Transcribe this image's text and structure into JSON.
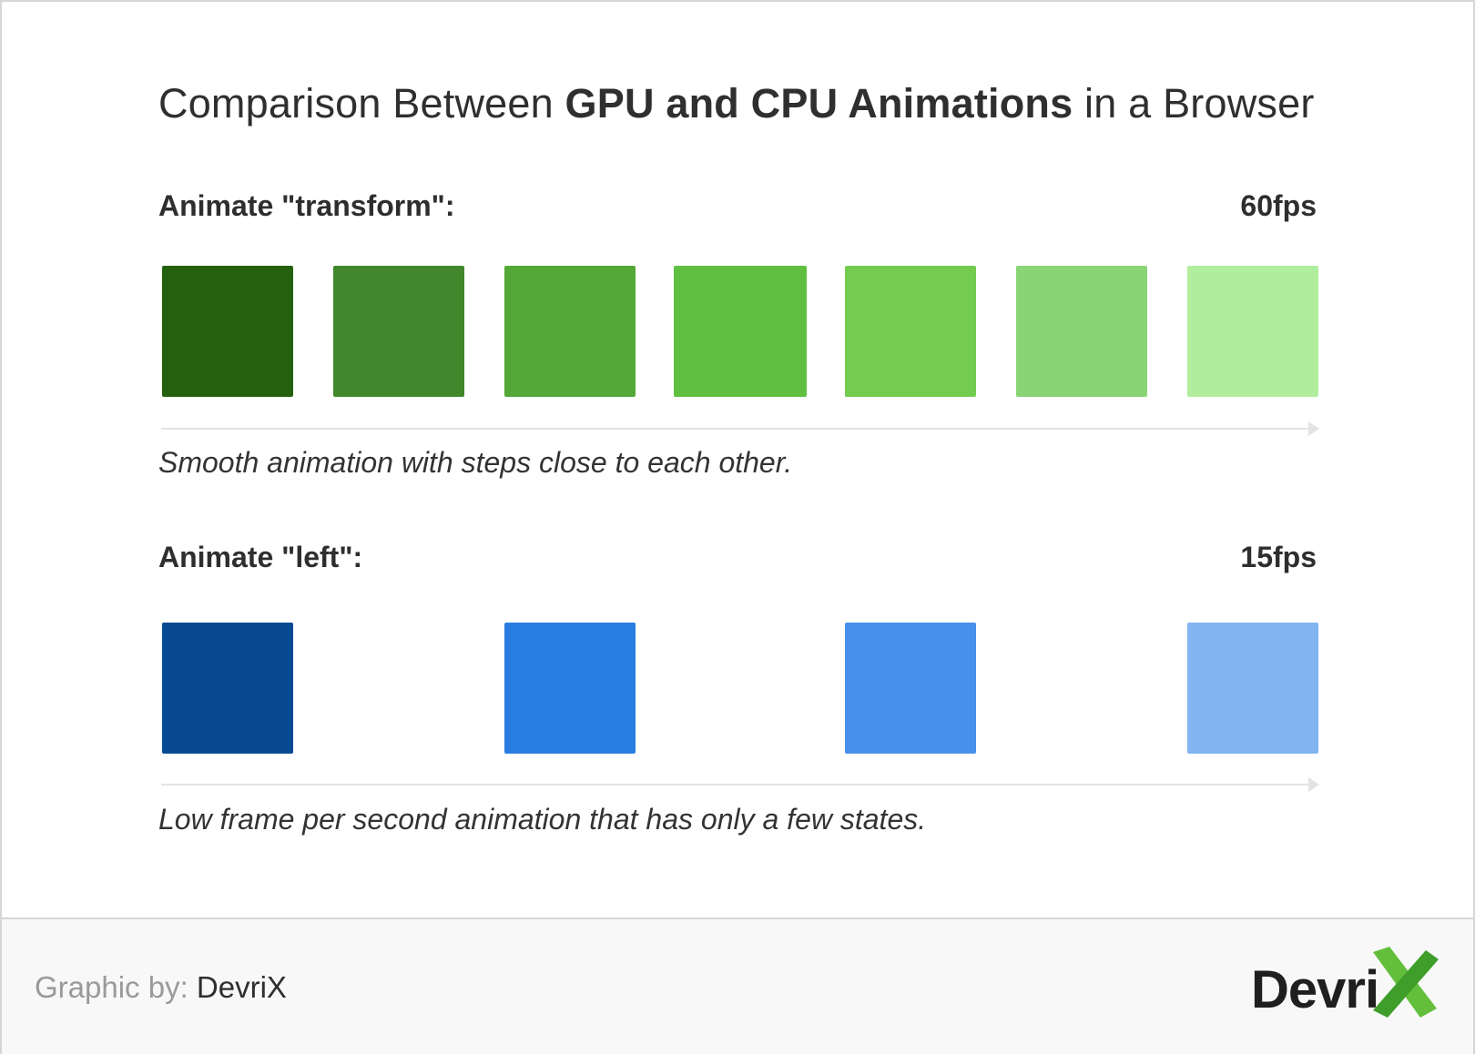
{
  "title": {
    "prefix": "Comparison Between ",
    "bold": "GPU and CPU Animations",
    "suffix": " in a Browser"
  },
  "rows": [
    {
      "label": "Animate \"transform\":",
      "fps": "60fps",
      "caption": "Smooth animation with steps close to each other.",
      "swatch_colors": [
        "#25600e",
        "#40882b",
        "#53a837",
        "#60bf3f",
        "#73cc50",
        "#8bd476",
        "#b0ee9e"
      ]
    },
    {
      "label": "Animate \"left\":",
      "fps": "15fps",
      "caption": "Low frame per second animation that has only a few states.",
      "swatch_colors": [
        "#084993",
        "#2a7de0",
        "#4890ea",
        "#82b5f0"
      ]
    }
  ],
  "footer": {
    "credit_label": "Graphic by:",
    "credit_name": "DevriX",
    "logo_text": "Devri",
    "logo_mark": "X"
  },
  "colors": {
    "logo_x_green": "#63bf3b",
    "logo_x_dark": "#3f9e2a",
    "axis": "#e3e3e3"
  }
}
